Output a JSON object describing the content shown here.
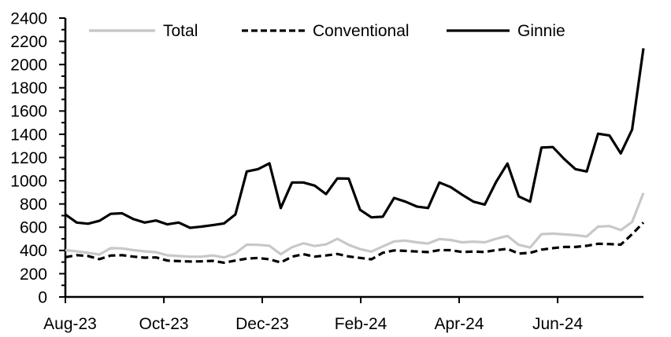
{
  "chart_data": {
    "type": "line",
    "title": "",
    "xlabel": "",
    "ylabel": "",
    "grid": false,
    "legend_position": "top-inside",
    "x_axis": {
      "tick_labels": [
        "Aug-23",
        "Oct-23",
        "Dec-23",
        "Feb-24",
        "Apr-24",
        "Jun-24"
      ],
      "tick_week_positions": [
        0,
        8.69,
        17.37,
        26.06,
        34.74,
        43.43
      ],
      "points_spacing": "weekly",
      "total_weeks": 51
    },
    "y_axis": {
      "tick_labels": [
        "0",
        "200",
        "400",
        "600",
        "800",
        "1000",
        "1200",
        "1400",
        "1600",
        "1800",
        "2000",
        "2200",
        "2400"
      ],
      "label_step": 200,
      "minor_tick_step": 100,
      "ylim": [
        0,
        2400
      ]
    },
    "series": [
      {
        "name": "Total",
        "color": "#c8c8c8",
        "dash": null,
        "values": [
          403,
          392,
          380,
          365,
          420,
          418,
          403,
          392,
          385,
          358,
          352,
          346,
          347,
          357,
          340,
          375,
          450,
          448,
          440,
          368,
          428,
          462,
          438,
          452,
          500,
          448,
          412,
          390,
          435,
          478,
          485,
          470,
          460,
          498,
          490,
          470,
          476,
          470,
          500,
          525,
          448,
          425,
          540,
          545,
          538,
          532,
          520,
          605,
          610,
          575,
          645,
          895
        ]
      },
      {
        "name": "Conventional",
        "color": "#000000",
        "dash": "9 5",
        "values": [
          342,
          360,
          352,
          325,
          356,
          360,
          347,
          338,
          340,
          313,
          308,
          305,
          306,
          310,
          295,
          313,
          330,
          335,
          324,
          297,
          347,
          368,
          347,
          357,
          370,
          348,
          336,
          324,
          380,
          400,
          396,
          391,
          386,
          403,
          402,
          387,
          391,
          387,
          403,
          414,
          373,
          380,
          407,
          420,
          430,
          430,
          440,
          458,
          455,
          450,
          540,
          640
        ]
      },
      {
        "name": "Ginnie",
        "color": "#000000",
        "dash": null,
        "values": [
          710,
          640,
          630,
          655,
          715,
          720,
          670,
          640,
          658,
          625,
          640,
          595,
          605,
          618,
          633,
          710,
          1080,
          1100,
          1150,
          765,
          985,
          985,
          958,
          885,
          1020,
          1018,
          750,
          685,
          690,
          852,
          820,
          778,
          765,
          985,
          945,
          880,
          820,
          795,
          990,
          1148,
          865,
          820,
          1285,
          1290,
          1188,
          1100,
          1080,
          1405,
          1390,
          1235,
          1440,
          2140
        ]
      }
    ],
    "axis_color": "#000000"
  }
}
